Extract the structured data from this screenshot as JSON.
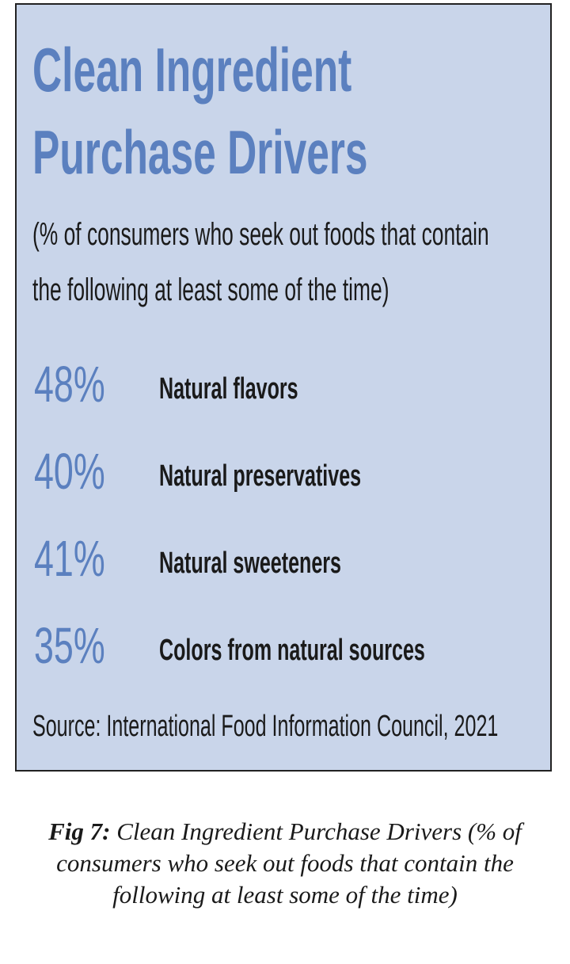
{
  "panel": {
    "title": "Clean Ingredient Purchase Drivers",
    "subtitle": "(% of consumers who seek out foods that contain the following at least some of the time)",
    "items": [
      {
        "value": "48%",
        "label": "Natural flavors"
      },
      {
        "value": "40%",
        "label": "Natural preservatives"
      },
      {
        "value": "41%",
        "label": "Natural sweeteners"
      },
      {
        "value": "35%",
        "label": "Colors from natural sources"
      }
    ],
    "source": "Source: International Food Information Council, 2021"
  },
  "caption": {
    "label": "Fig 7:",
    "text": "Clean Ingredient Purchase Drivers (% of consumers who seek out foods that contain the following at least some of the time)"
  }
}
